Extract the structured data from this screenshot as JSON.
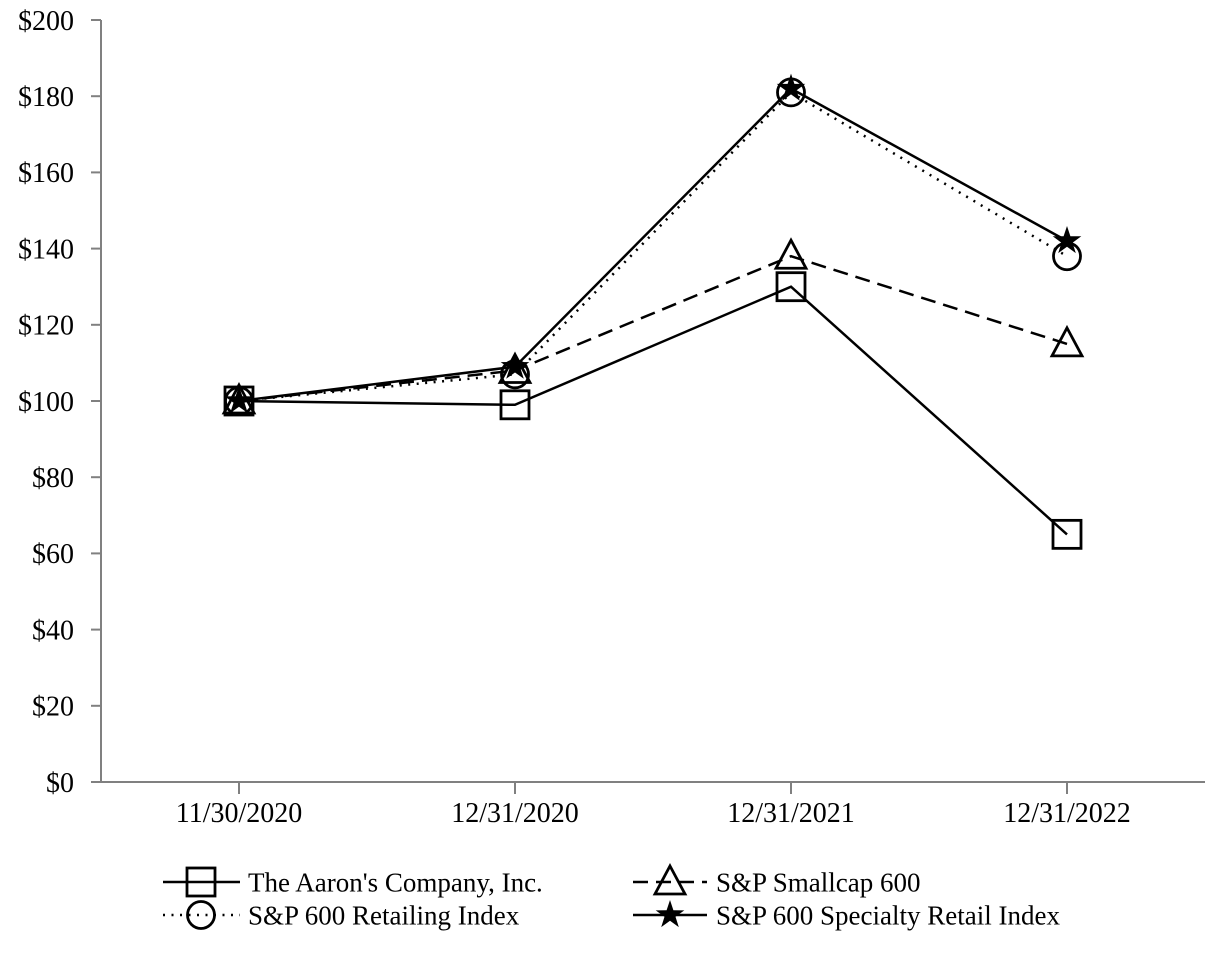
{
  "chart_data": {
    "type": "line",
    "title": "",
    "x_categories": [
      "11/30/2020",
      "12/31/2020",
      "12/31/2021",
      "12/31/2022"
    ],
    "series": [
      {
        "name": "The Aaron's Company, Inc.",
        "values": [
          100,
          99,
          130,
          65
        ],
        "line_style": "solid",
        "marker": "square",
        "marker_fill": "open"
      },
      {
        "name": "S&P Smallcap 600",
        "values": [
          100,
          108,
          138,
          115
        ],
        "line_style": "dashed",
        "marker": "triangle",
        "marker_fill": "open"
      },
      {
        "name": "S&P 600 Retailing Index",
        "values": [
          100,
          107,
          181,
          138
        ],
        "line_style": "dotted",
        "marker": "circle",
        "marker_fill": "open"
      },
      {
        "name": "S&P 600 Specialty Retail Index",
        "values": [
          100,
          109,
          182,
          142
        ],
        "line_style": "solid",
        "marker": "star",
        "marker_fill": "filled"
      }
    ],
    "y_axis": {
      "min": 0,
      "max": 200,
      "step": 20,
      "tick_prefix": "$",
      "labels": [
        "$0",
        "$20",
        "$40",
        "$60",
        "$80",
        "$100",
        "$120",
        "$140",
        "$160",
        "$180",
        "$200"
      ]
    },
    "x_axis": {
      "labels": [
        "11/30/2020",
        "12/31/2020",
        "12/31/2021",
        "12/31/2022"
      ]
    },
    "legend_position": "bottom",
    "legend_order": [
      "The Aaron's Company, Inc.",
      "S&P Smallcap 600",
      "S&P 600 Retailing Index",
      "S&P 600 Specialty Retail Index"
    ],
    "grid": false,
    "ylim": [
      0,
      200
    ]
  },
  "colors": {
    "series_line": "#000000",
    "axis_line": "#808080",
    "text": "#000000",
    "background": "#ffffff"
  }
}
